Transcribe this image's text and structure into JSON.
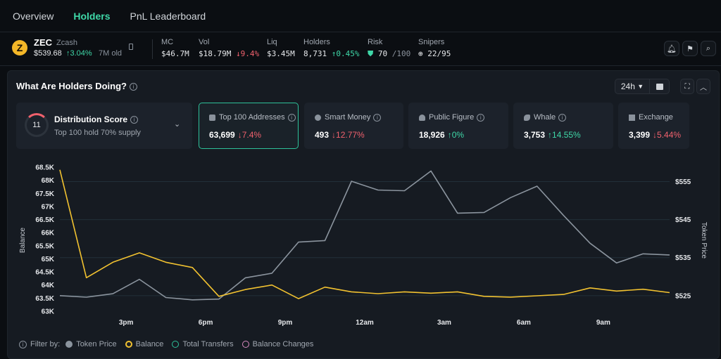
{
  "tabs": [
    {
      "label": "Overview"
    },
    {
      "label": "Holders"
    },
    {
      "label": "PnL Leaderboard"
    }
  ],
  "token": {
    "logo_letter": "Z",
    "symbol": "ZEC",
    "name": "Zcash",
    "price": "$539.68",
    "change": "↑3.04%",
    "age": "7M old"
  },
  "stats": {
    "mc": {
      "label": "MC",
      "value": "$46.7M"
    },
    "vol": {
      "label": "Vol",
      "value": "$18.79M",
      "change": "↓9.4%"
    },
    "liq": {
      "label": "Liq",
      "value": "$3.45M"
    },
    "holders": {
      "label": "Holders",
      "value": "8,731",
      "change": "↑0.45%"
    },
    "risk": {
      "label": "Risk",
      "value": "70",
      "max": "/100"
    },
    "snipers": {
      "label": "Snipers",
      "value": "22/95"
    }
  },
  "panel": {
    "title": "What Are Holders Doing?",
    "timeframe": "24h",
    "distribution": {
      "score": "11",
      "title": "Distribution Score",
      "subtitle": "Top 100 hold 70% supply"
    },
    "cards": [
      {
        "title": "Top 100 Addresses",
        "value": "63,699",
        "change": "↓7.4%",
        "dir": "down"
      },
      {
        "title": "Smart Money",
        "value": "493",
        "change": "↓12.77%",
        "dir": "down"
      },
      {
        "title": "Public Figure",
        "value": "18,926",
        "change": "↑0%",
        "dir": "up"
      },
      {
        "title": "Whale",
        "value": "3,753",
        "change": "↑14.55%",
        "dir": "up"
      },
      {
        "title": "Exchange",
        "value": "3,399",
        "change": "↓5.44%",
        "dir": "down"
      }
    ]
  },
  "chart_data": {
    "type": "line",
    "xlabel": "",
    "ylabel": "Balance",
    "ylabel_right": "Token Price",
    "x_ticks": [
      "3pm",
      "6pm",
      "9pm",
      "12am",
      "3am",
      "6am",
      "9am"
    ],
    "y_ticks_left": [
      "68.5K",
      "68K",
      "67.5K",
      "67K",
      "66.5K",
      "66K",
      "65.5K",
      "65K",
      "64.5K",
      "64K",
      "63.5K",
      "63K"
    ],
    "y_ticks_right": [
      "$555",
      "$545",
      "$535",
      "$525"
    ],
    "ylim_left": [
      63000,
      68500
    ],
    "ylim_right": [
      520.9,
      558.8
    ],
    "series": [
      {
        "name": "Balance",
        "color": "#f2c230",
        "axis": "left",
        "values": [
          68400,
          64280,
          64870,
          65230,
          64870,
          64670,
          63570,
          63830,
          64000,
          63480,
          63920,
          63740,
          63670,
          63740,
          63690,
          63740,
          63570,
          63540,
          63590,
          63640,
          63890,
          63770,
          63840,
          63710
        ]
      },
      {
        "name": "Token Price",
        "color": "#8b949e",
        "axis": "right",
        "values": [
          525.0,
          524.6,
          525.5,
          529.3,
          524.5,
          523.9,
          524.1,
          529.7,
          530.9,
          539.1,
          539.5,
          555.1,
          552.8,
          552.6,
          557.8,
          546.7,
          546.9,
          550.8,
          553.8,
          546.1,
          538.8,
          533.6,
          536.0,
          535.7
        ]
      }
    ],
    "legend_title": "Filter by:",
    "legend": [
      {
        "name": "Token Price",
        "color": "#8b949e",
        "style": "filled"
      },
      {
        "name": "Balance",
        "color": "#f2c230",
        "style": "ring"
      },
      {
        "name": "Total Transfers",
        "color": "#2ec29a",
        "style": "outline"
      },
      {
        "name": "Balance Changes",
        "color": "#d98bc0",
        "style": "outline"
      }
    ],
    "grid": true,
    "legend_position": "bottom-left"
  }
}
